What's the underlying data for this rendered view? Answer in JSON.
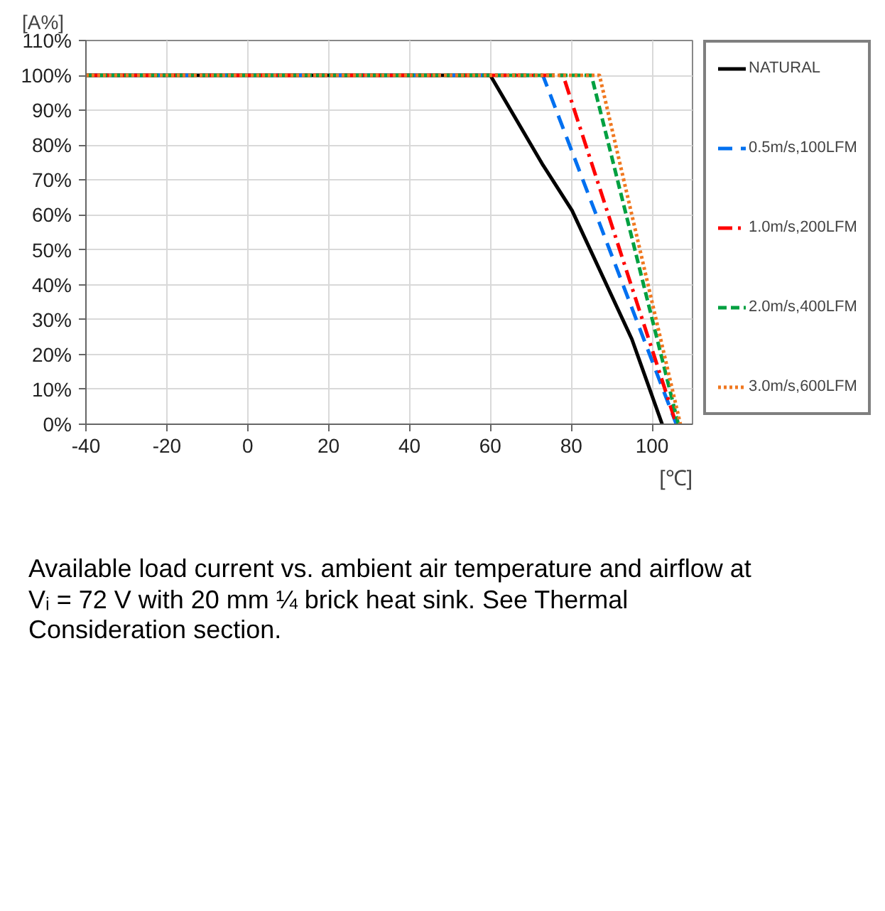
{
  "chart_data": {
    "type": "line",
    "ylabel": "[A%]",
    "xlabel": "[℃]",
    "xlim": [
      -40,
      110
    ],
    "xticks": [
      -40,
      -20,
      0,
      20,
      40,
      60,
      80,
      100
    ],
    "ylim": [
      0,
      110
    ],
    "yticks": [
      {
        "value": 0,
        "label": "0%"
      },
      {
        "value": 10,
        "label": "10%"
      },
      {
        "value": 20,
        "label": "20%"
      },
      {
        "value": 30,
        "label": "30%"
      },
      {
        "value": 40,
        "label": "40%"
      },
      {
        "value": 50,
        "label": "50%"
      },
      {
        "value": 60,
        "label": "60%"
      },
      {
        "value": 70,
        "label": "70%"
      },
      {
        "value": 80,
        "label": "80%"
      },
      {
        "value": 90,
        "label": "90%"
      },
      {
        "value": 100,
        "label": "100%"
      },
      {
        "value": 110,
        "label": "110%"
      }
    ],
    "grid": true,
    "legend": "right",
    "marker": "none",
    "series": [
      {
        "name": "NATURAL",
        "color": "#000000",
        "line_style": "solid",
        "x": [
          -40,
          60,
          72.8,
          80.2,
          95,
          102.5
        ],
        "values": [
          100,
          100,
          74.7,
          61.3,
          24.4,
          0
        ]
      },
      {
        "name": "0.5m/s,100LFM",
        "color": "#0070f0",
        "line_style": "longdash",
        "x": [
          -40,
          73,
          106
        ],
        "values": [
          100,
          100,
          0
        ]
      },
      {
        "name": "1.0m/s,200LFM",
        "color": "#ff0000",
        "line_style": "dashdot",
        "x": [
          -40,
          78,
          106
        ],
        "values": [
          100,
          100,
          0
        ]
      },
      {
        "name": "2.0m/s,400LFM",
        "color": "#00a040",
        "line_style": "dashed",
        "x": [
          -40,
          85,
          106.5
        ],
        "values": [
          100,
          100,
          0
        ]
      },
      {
        "name": "3.0m/s,600LFM",
        "color": "#f07820",
        "line_style": "dotted",
        "x": [
          -40,
          87,
          107
        ],
        "values": [
          100,
          100,
          0
        ]
      }
    ],
    "annotations": [
      "Available load current vs. ambient air temperature and airflow at Vᵢ = 72 V with 20 mm ¼ brick heat sink. See Thermal Consideration section."
    ]
  }
}
